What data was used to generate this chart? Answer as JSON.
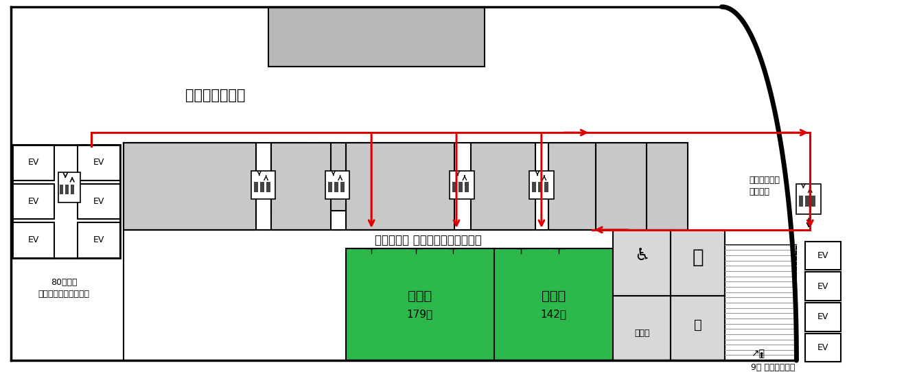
{
  "bg_color": "#ffffff",
  "lobby_label": "オフィスロビー",
  "conf_label": "梅田サウス カンファレンスルーム",
  "room2_label": "２号室",
  "room2_area": "179㎡",
  "room1_label": "１号室",
  "room1_area": "142㎡",
  "security_label": "警備室",
  "shuttle_label1": "80人乗り",
  "shuttle_label2": "シャトルエレベーター",
  "right_label1": "各階停止３基",
  "right_label2": "直通１基",
  "bottom_label": "9階 阪神梅田本店",
  "gray": "#c8c8c8",
  "light_gray": "#d8d8d8",
  "green": "#2db84b",
  "red": "#dd0000",
  "black": "#000000"
}
